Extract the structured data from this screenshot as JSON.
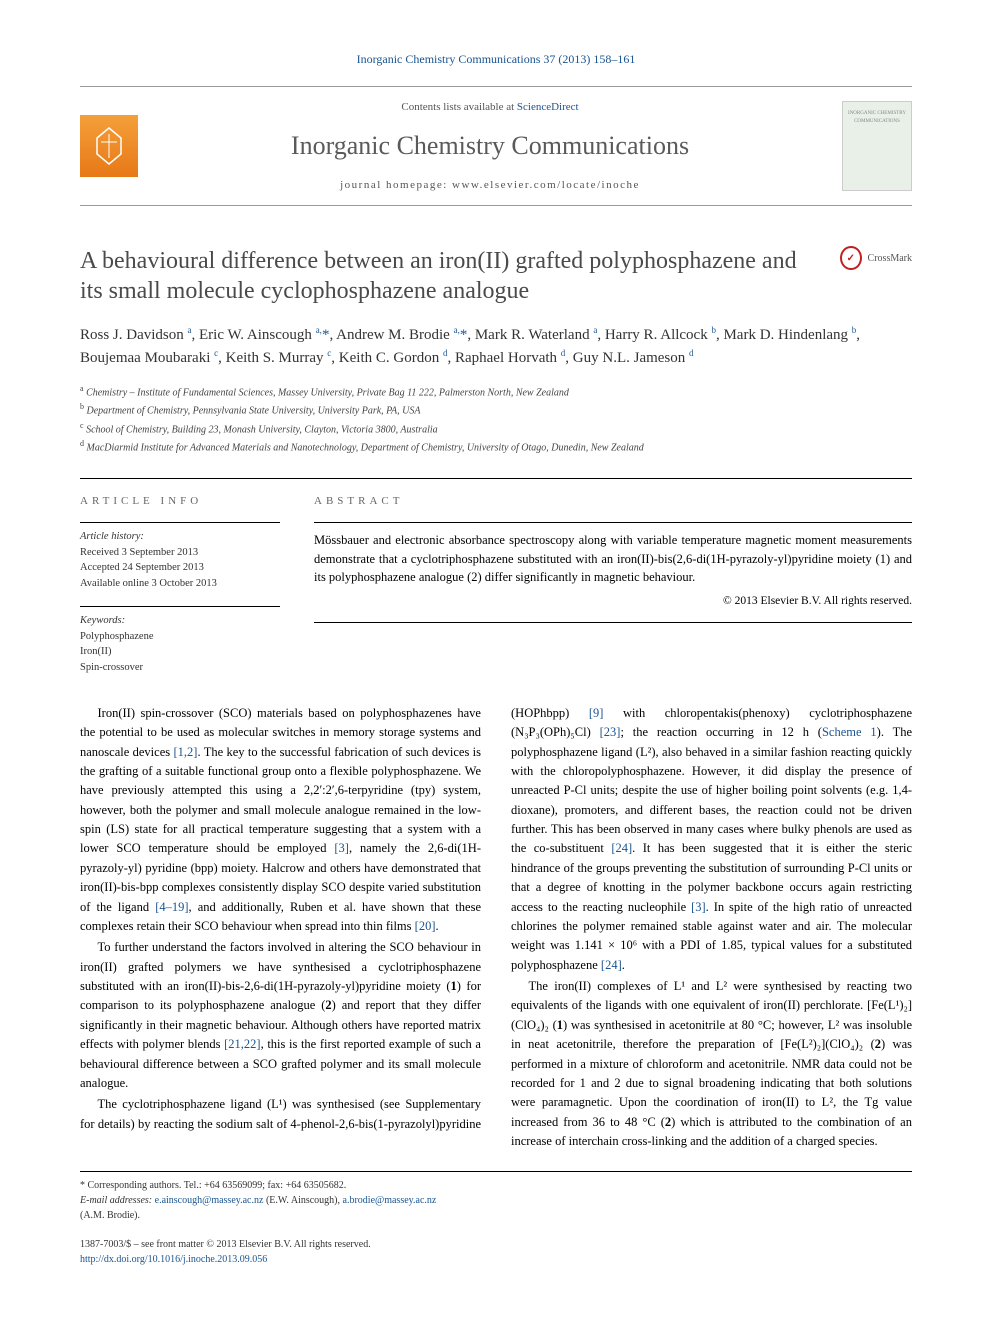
{
  "journal_link": "Inorganic Chemistry Communications 37 (2013) 158–161",
  "masthead": {
    "contents_prefix": "Contents lists available at ",
    "contents_link": "ScienceDirect",
    "journal_title": "Inorganic Chemistry Communications",
    "homepage_line": "journal homepage: www.elsevier.com/locate/inoche",
    "cover_text": "INORGANIC CHEMISTRY COMMUNICATIONS"
  },
  "paper": {
    "title": "A behavioural difference between an iron(II) grafted polyphosphazene and its small molecule cyclophosphazene analogue",
    "crossmark_label": "CrossMark"
  },
  "authors_html": "Ross J. Davidson <sup>a</sup>, Eric W. Ainscough <sup>a,</sup><span class='star'>*</span>, Andrew M. Brodie <sup>a,</sup><span class='star'>*</span>, Mark R. Waterland <sup>a</sup>, Harry R. Allcock <sup>b</sup>, Mark D. Hindenlang <sup>b</sup>, Boujemaa Moubaraki <sup>c</sup>, Keith S. Murray <sup>c</sup>, Keith C. Gordon <sup>d</sup>, Raphael Horvath <sup>d</sup>, Guy N.L. Jameson <sup>d</sup>",
  "affiliations": [
    {
      "key": "a",
      "text": "Chemistry – Institute of Fundamental Sciences, Massey University, Private Bag 11 222, Palmerston North, New Zealand"
    },
    {
      "key": "b",
      "text": "Department of Chemistry, Pennsylvania State University, University Park, PA, USA"
    },
    {
      "key": "c",
      "text": "School of Chemistry, Building 23, Monash University, Clayton, Victoria 3800, Australia"
    },
    {
      "key": "d",
      "text": "MacDiarmid Institute for Advanced Materials and Nanotechnology, Department of Chemistry, University of Otago, Dunedin, New Zealand"
    }
  ],
  "article_info": {
    "label": "ARTICLE INFO",
    "history_label": "Article history:",
    "history": [
      "Received 3 September 2013",
      "Accepted 24 September 2013",
      "Available online 3 October 2013"
    ],
    "keywords_label": "Keywords:",
    "keywords": [
      "Polyphosphazene",
      "Iron(II)",
      "Spin-crossover"
    ]
  },
  "abstract": {
    "label": "ABSTRACT",
    "text": "Mössbauer and electronic absorbance spectroscopy along with variable temperature magnetic moment measurements demonstrate that a cyclotriphosphazene substituted with an iron(II)-bis(2,6-di(1H-pyrazoly-yl)pyridine moiety (1) and its polyphosphazene analogue (2) differ significantly in magnetic behaviour.",
    "copyright": "© 2013 Elsevier B.V. All rights reserved."
  },
  "body": {
    "p1": "Iron(II) spin-crossover (SCO) materials based on polyphosphazenes have the potential to be used as molecular switches in memory storage systems and nanoscale devices [1,2]. The key to the successful fabrication of such devices is the grafting of a suitable functional group onto a flexible polyphosphazene. We have previously attempted this using a 2,2′:2′,6-terpyridine (tpy) system, however, both the polymer and small molecule analogue remained in the low-spin (LS) state for all practical temperature suggesting that a system with a lower SCO temperature should be employed [3], namely the 2,6-di(1H-pyrazoly-yl) pyridine (bpp) moiety. Halcrow and others have demonstrated that iron(II)-bis-bpp complexes consistently display SCO despite varied substitution of the ligand [4–19], and additionally, Ruben et al. have shown that these complexes retain their SCO behaviour when spread into thin films [20].",
    "p2": "To further understand the factors involved in altering the SCO behaviour in iron(II) grafted polymers we have synthesised a cyclotriphosphazene substituted with an iron(II)-bis-2,6-di(1H-pyrazoly-yl)pyridine moiety (1) for comparison to its polyphosphazene analogue (2) and report that they differ significantly in their magnetic behaviour. Although others have reported matrix effects with polymer blends [21,22], this is the first reported example of such a behavioural difference between a SCO grafted polymer and its small molecule analogue.",
    "p3": "The cyclotriphosphazene ligand (L¹) was synthesised (see Supplementary for details) by reacting the sodium salt of 4-phenol-2,6-bis(1-pyrazolyl)pyridine (HOPhbpp) [9] with chloropentakis(phenoxy) cyclotriphosphazene (N₃P₃(OPh)₅Cl) [23]; the reaction occurring in 12 h (Scheme 1). The polyphosphazene ligand (L²), also behaved in a similar fashion reacting quickly with the chloropolyphosphazene. However, it did display the presence of unreacted P-Cl units; despite the use of higher boiling point solvents (e.g. 1,4-dioxane), promoters, and different bases, the reaction could not be driven further. This has been observed in many cases where bulky phenols are used as the co-substituent [24]. It has been suggested that it is either the steric hindrance of the groups preventing the substitution of surrounding P-Cl units or that a degree of knotting in the polymer backbone occurs again restricting access to the reacting nucleophile [3]. In spite of the high ratio of unreacted chlorines the polymer remained stable against water and air. The molecular weight was 1.141 × 10⁶ with a PDI of 1.85, typical values for a substituted polyphosphazene [24].",
    "p4": "The iron(II) complexes of L¹ and L² were synthesised by reacting two equivalents of the ligands with one equivalent of iron(II) perchlorate. [Fe(L¹)₂](ClO₄)₂ (1) was synthesised in acetonitrile at 80 °C; however, L² was insoluble in neat acetonitrile, therefore the preparation of [Fe(L²)₂](ClO₄)₂ (2) was performed in a mixture of chloroform and acetonitrile. NMR data could not be recorded for 1 and 2 due to signal broadening indicating that both solutions were paramagnetic. Upon the coordination of iron(II) to L², the Tg value increased from 36 to 48 °C (2) which is attributed to the combination of an increase of interchain cross-linking and the addition of a charged species."
  },
  "footnotes": {
    "corresponding": "* Corresponding authors. Tel.: +64 63569099; fax: +64 63505682.",
    "emails_label": "E-mail addresses: ",
    "email1": "e.ainscough@massey.ac.nz",
    "email1_name": " (E.W. Ainscough), ",
    "email2": "a.brodie@massey.ac.nz",
    "email2_name": " (A.M. Brodie)."
  },
  "footer": {
    "left_line1": "1387-7003/$ – see front matter © 2013 Elsevier B.V. All rights reserved.",
    "doi": "http://dx.doi.org/10.1016/j.inoche.2013.09.056"
  },
  "colors": {
    "link": "#1a5490",
    "orange": "#e77817",
    "text": "#000000"
  }
}
